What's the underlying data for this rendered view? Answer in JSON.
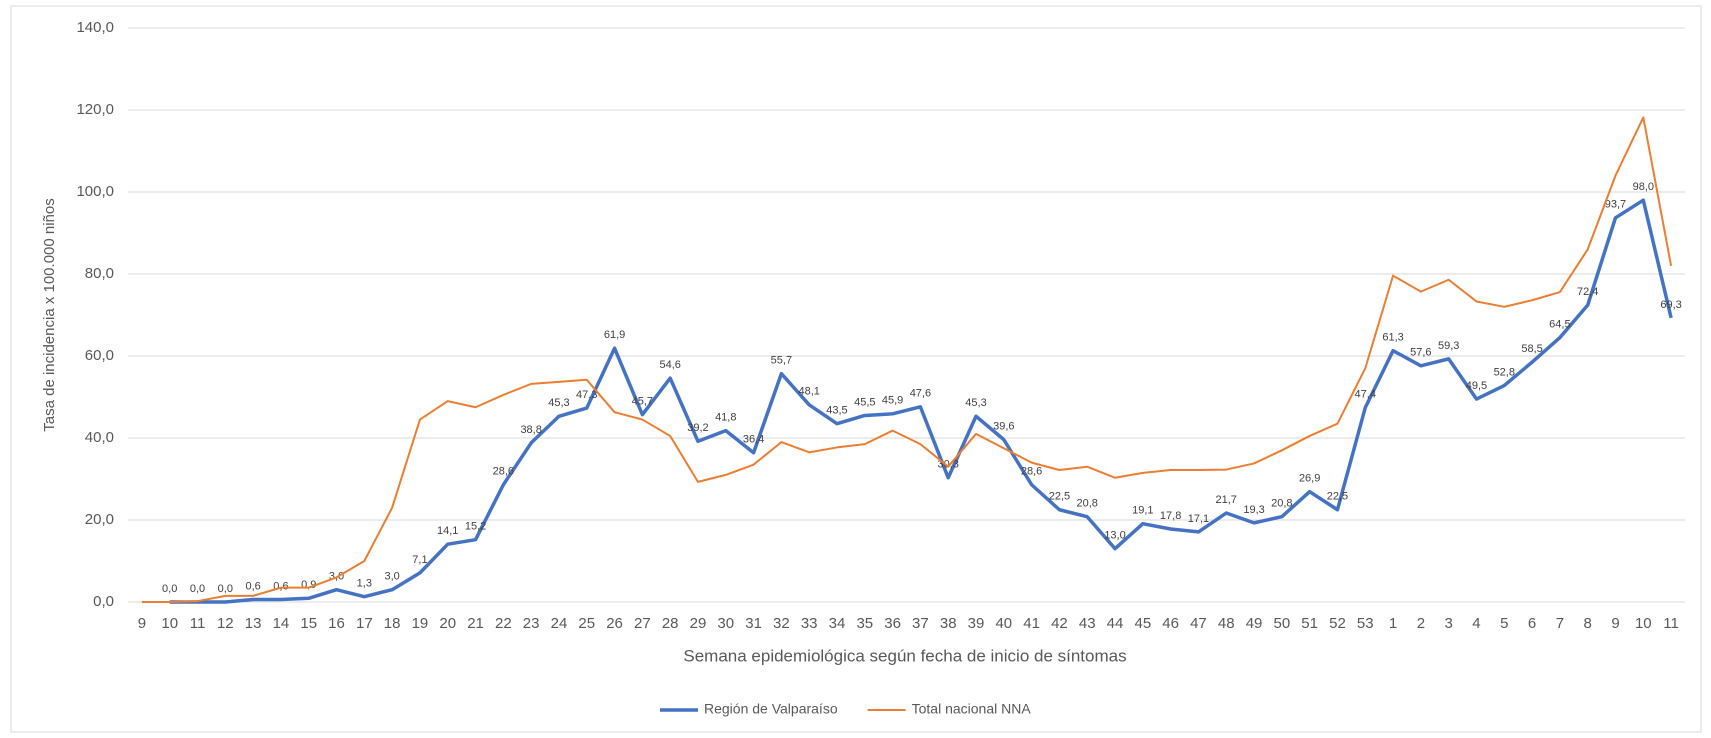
{
  "chart_data": {
    "type": "line",
    "y_label": "Tasa de incidencia x 100.000 niños",
    "x_label": "Semana epidemiológica según fecha de inicio de síntomas",
    "categories": [
      "9",
      "10",
      "11",
      "12",
      "13",
      "14",
      "15",
      "16",
      "17",
      "18",
      "19",
      "20",
      "21",
      "22",
      "23",
      "24",
      "25",
      "26",
      "27",
      "28",
      "29",
      "30",
      "31",
      "32",
      "33",
      "34",
      "35",
      "36",
      "37",
      "38",
      "39",
      "40",
      "41",
      "42",
      "43",
      "44",
      "45",
      "46",
      "47",
      "48",
      "49",
      "50",
      "51",
      "52",
      "53",
      "1",
      "2",
      "3",
      "4",
      "5",
      "6",
      "7",
      "8",
      "9",
      "10",
      "11"
    ],
    "ylim": [
      0,
      140
    ],
    "yticks": [
      {
        "value": 0,
        "label": "0,0"
      },
      {
        "value": 20,
        "label": "20,0"
      },
      {
        "value": 40,
        "label": "40,0"
      },
      {
        "value": 60,
        "label": "60,0"
      },
      {
        "value": 80,
        "label": "80,0"
      },
      {
        "value": 100,
        "label": "100,0"
      },
      {
        "value": 120,
        "label": "120,0"
      },
      {
        "value": 140,
        "label": "140,0"
      }
    ],
    "grid": true,
    "legend": "bottom",
    "series": [
      {
        "name": "Región de Valparaíso",
        "color": "#4472c4",
        "values": [
          null,
          0.0,
          0.0,
          0.0,
          0.6,
          0.6,
          0.9,
          3.0,
          1.3,
          3.0,
          7.1,
          14.1,
          15.2,
          28.6,
          38.8,
          45.3,
          47.3,
          61.9,
          45.7,
          54.6,
          39.2,
          41.8,
          36.4,
          55.7,
          48.1,
          43.5,
          45.5,
          45.9,
          47.6,
          30.3,
          45.3,
          39.6,
          28.6,
          22.5,
          20.8,
          13.0,
          19.1,
          17.8,
          17.1,
          21.7,
          19.3,
          20.8,
          26.9,
          22.5,
          47.4,
          61.3,
          57.6,
          59.3,
          49.5,
          52.8,
          58.5,
          64.5,
          72.4,
          93.7,
          98.0,
          69.3
        ],
        "value_labels": [
          null,
          "0,0",
          "0,0",
          "0,0",
          "0,6",
          "0,6",
          "0,9",
          "3,0",
          "1,3",
          "3,0",
          "7,1",
          "14,1",
          "15,2",
          "28,6",
          "38,8",
          "45,3",
          "47,3",
          "61,9",
          "45,7",
          "54,6",
          "39,2",
          "41,8",
          "36,4",
          "55,7",
          "48,1",
          "43,5",
          "45,5",
          "45,9",
          "47,6",
          "30,3",
          "45,3",
          "39,6",
          "28,6",
          "22,5",
          "20,8",
          "13,0",
          "19,1",
          "17,8",
          "17,1",
          "21,7",
          "19,3",
          "20,8",
          "26,9",
          "22,5",
          "47,4",
          "61,3",
          "57,6",
          "59,3",
          "49,5",
          "52,8",
          "58,5",
          "64,5",
          "72,4",
          "93,7",
          "98,0",
          "69,3"
        ]
      },
      {
        "name": "Total nacional NNA",
        "color": "#ed7d31",
        "values": [
          0,
          0,
          0.2,
          1.5,
          1.5,
          3.5,
          3.5,
          6,
          10,
          23,
          44.5,
          49,
          47.5,
          50.5,
          53.2,
          53.7,
          54.2,
          46.3,
          44.5,
          40.5,
          29.3,
          31,
          33.5,
          39,
          36.5,
          37.7,
          38.5,
          41.8,
          38.5,
          33,
          41,
          37.5,
          34,
          32.2,
          33,
          30.3,
          31.5,
          32.2,
          32.2,
          32.3,
          33.8,
          37,
          40.5,
          43.5,
          57,
          79.6,
          75.7,
          78.6,
          73.3,
          72,
          73.6,
          75.6,
          86,
          104,
          118.2,
          82
        ]
      }
    ]
  }
}
